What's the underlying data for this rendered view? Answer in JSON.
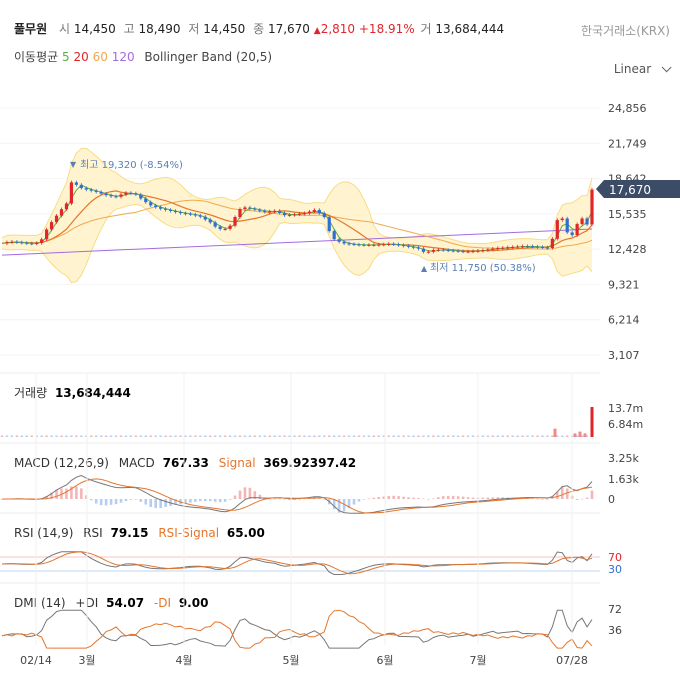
{
  "header": {
    "name": "풀무원",
    "open_label": "시",
    "open": "14,450",
    "high_label": "고",
    "high": "18,490",
    "low_label": "저",
    "low": "14,450",
    "close_label": "종",
    "close": "17,670",
    "change": "2,810",
    "change_pct": "+18.91%",
    "volume_label": "거",
    "volume": "13,684,444",
    "exchange": "한국거래소(KRX)"
  },
  "indicators": {
    "ma_label": "이동평균",
    "ma5": "5",
    "ma20": "20",
    "ma60": "60",
    "ma120": "120",
    "bb": "Bollinger Band (20,5)"
  },
  "scale_select": {
    "label": "Linear"
  },
  "colors": {
    "up": "#e0262b",
    "down": "#2f6fd1",
    "ma5": "#5cae4a",
    "ma20": "#e5762c",
    "ma60": "#f0a94e",
    "ma120": "#a26be0",
    "bb_fill": "#fff4cf",
    "bb_line": "#f7dc86"
  },
  "main_chart": {
    "y_ticks": [
      "24,856",
      "21,749",
      "18,642",
      "15,535",
      "12,428",
      "9,321",
      "6,214",
      "3,107"
    ],
    "y_tick_values": [
      24856,
      21749,
      18642,
      15535,
      12428,
      9321,
      6214,
      3107
    ],
    "current_price": "17,670",
    "current_price_value": 17670,
    "high_marker": "최고 19,320 (-8.54%)",
    "low_marker": "최저 11,750 (50.38%)"
  },
  "volume_panel": {
    "title": "거래량",
    "value": "13,684,444",
    "ticks": [
      "13.7m",
      "6.84m"
    ]
  },
  "macd_panel": {
    "title": "MACD (12,26,9)",
    "macd_label": "MACD",
    "macd": "767.33",
    "signal_label": "Signal",
    "signal": "369.92397.42",
    "ticks": [
      "3.25k",
      "1.63k",
      "0"
    ]
  },
  "rsi_panel": {
    "title": "RSI (14,9)",
    "rsi_label": "RSI",
    "rsi": "79.15",
    "signal_label": "RSI-Signal",
    "signal": "65.00",
    "ticks": [
      "70",
      "30"
    ]
  },
  "dmi_panel": {
    "title": "DMI (14)",
    "pdi_label": "+DI",
    "pdi": "54.07",
    "mdi_label": "-DI",
    "mdi": "9.00",
    "ticks": [
      "72",
      "36"
    ]
  },
  "x_axis": {
    "labels": [
      "02/14",
      "3월",
      "4월",
      "5월",
      "6월",
      "7월",
      "07/28"
    ]
  },
  "chart_data": {
    "type": "line",
    "price_anchors": [
      [
        0,
        12900
      ],
      [
        10,
        13100
      ],
      [
        20,
        13000
      ],
      [
        30,
        12900
      ],
      [
        40,
        13000
      ],
      [
        48,
        14400
      ],
      [
        55,
        15200
      ],
      [
        62,
        16000
      ],
      [
        68,
        16600
      ],
      [
        72,
        18600
      ],
      [
        78,
        17900
      ],
      [
        85,
        17700
      ],
      [
        95,
        17500
      ],
      [
        105,
        17200
      ],
      [
        115,
        17000
      ],
      [
        125,
        17400
      ],
      [
        135,
        17300
      ],
      [
        142,
        16800
      ],
      [
        150,
        16300
      ],
      [
        160,
        16000
      ],
      [
        170,
        15800
      ],
      [
        180,
        15600
      ],
      [
        190,
        15500
      ],
      [
        200,
        15300
      ],
      [
        210,
        14800
      ],
      [
        218,
        14200
      ],
      [
        225,
        14200
      ],
      [
        232,
        14600
      ],
      [
        238,
        15900
      ],
      [
        245,
        16100
      ],
      [
        255,
        15900
      ],
      [
        265,
        15700
      ],
      [
        275,
        15800
      ],
      [
        285,
        15400
      ],
      [
        295,
        15500
      ],
      [
        305,
        15600
      ],
      [
        315,
        15900
      ],
      [
        325,
        15200
      ],
      [
        330,
        13800
      ],
      [
        335,
        13200
      ],
      [
        345,
        12900
      ],
      [
        360,
        12800
      ],
      [
        375,
        12800
      ],
      [
        390,
        12900
      ],
      [
        405,
        12700
      ],
      [
        418,
        12500
      ],
      [
        425,
        12100
      ],
      [
        435,
        12400
      ],
      [
        450,
        12300
      ],
      [
        465,
        12200
      ],
      [
        480,
        12300
      ],
      [
        495,
        12500
      ],
      [
        510,
        12600
      ],
      [
        525,
        12700
      ],
      [
        540,
        12600
      ],
      [
        550,
        12500
      ],
      [
        555,
        14300
      ],
      [
        560,
        15800
      ],
      [
        565,
        14300
      ],
      [
        570,
        13400
      ],
      [
        575,
        14000
      ],
      [
        580,
        15500
      ],
      [
        585,
        14600
      ],
      [
        590,
        14600
      ],
      [
        592,
        17670
      ]
    ],
    "volume_spikes": [
      [
        555,
        0.28
      ],
      [
        575,
        0.12
      ],
      [
        580,
        0.18
      ],
      [
        585,
        0.12
      ],
      [
        592,
        1.0
      ]
    ],
    "macd": {
      "latest": 767.33,
      "signal_latest": 369.92,
      "ylim": [
        -250,
        3250
      ]
    },
    "rsi": {
      "latest": 79.15,
      "signal_latest": 65.0,
      "levels": [
        70,
        30
      ]
    },
    "dmi": {
      "plus_di": 54.07,
      "minus_di": 9.0,
      "ticks": [
        72,
        36
      ]
    }
  }
}
